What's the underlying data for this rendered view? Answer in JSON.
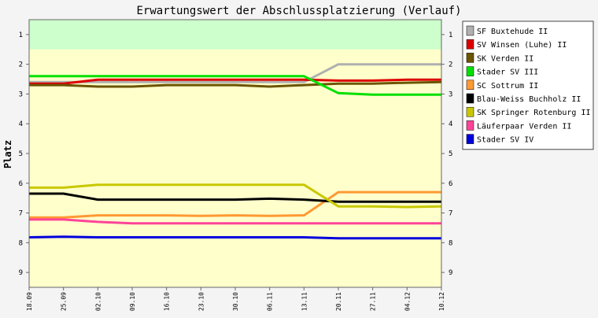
{
  "chart_data": {
    "type": "line",
    "title": "Erwartungswert der Abschlussplatzierung (Verlauf)",
    "xlabel": "",
    "ylabel": "Platz",
    "ylim": [
      0.5,
      9.5
    ],
    "y_inverted": true,
    "yticks": [
      "1",
      "2",
      "3",
      "4",
      "5",
      "6",
      "7",
      "8",
      "9"
    ],
    "categories": [
      "18.09",
      "25.09",
      "02.10",
      "09.10",
      "16.10",
      "23.10",
      "30.10",
      "06.11",
      "13.11",
      "20.11",
      "27.11",
      "04.12",
      "10.12"
    ],
    "grid": false,
    "legend_position": "right",
    "bands": [
      {
        "from": 0.5,
        "to": 1.5,
        "color": "#ccffcc"
      },
      {
        "from": 1.5,
        "to": 9.5,
        "color": "#ffffcc"
      }
    ],
    "series": [
      {
        "name": "SF Buxtehude II",
        "color": "#b0b0b0",
        "values": [
          2.6,
          2.6,
          2.6,
          2.6,
          2.6,
          2.6,
          2.6,
          2.6,
          2.6,
          2.0,
          2.0,
          2.0,
          2.0
        ]
      },
      {
        "name": "SV Winsen (Luhe) II",
        "color": "#dd0000",
        "values": [
          2.65,
          2.65,
          2.52,
          2.52,
          2.52,
          2.52,
          2.52,
          2.52,
          2.52,
          2.55,
          2.55,
          2.52,
          2.52
        ]
      },
      {
        "name": "SK Verden II",
        "color": "#6b5500",
        "values": [
          2.7,
          2.7,
          2.75,
          2.75,
          2.7,
          2.7,
          2.7,
          2.75,
          2.7,
          2.65,
          2.65,
          2.62,
          2.6
        ]
      },
      {
        "name": "Stader SV III",
        "color": "#00e000",
        "values": [
          2.4,
          2.4,
          2.4,
          2.4,
          2.4,
          2.4,
          2.4,
          2.4,
          2.4,
          2.97,
          3.02,
          3.02,
          3.02
        ]
      },
      {
        "name": "SC Sottrum II",
        "color": "#ff9933",
        "values": [
          7.15,
          7.15,
          7.08,
          7.08,
          7.08,
          7.1,
          7.08,
          7.1,
          7.08,
          6.3,
          6.3,
          6.3,
          6.3
        ]
      },
      {
        "name": "Blau-Weiss Buchholz II",
        "color": "#000000",
        "values": [
          6.35,
          6.35,
          6.55,
          6.55,
          6.55,
          6.55,
          6.55,
          6.52,
          6.55,
          6.62,
          6.62,
          6.62,
          6.62
        ]
      },
      {
        "name": "SK Springer Rotenburg II",
        "color": "#c8c800",
        "values": [
          6.15,
          6.15,
          6.05,
          6.05,
          6.05,
          6.05,
          6.05,
          6.05,
          6.05,
          6.78,
          6.78,
          6.8,
          6.78
        ]
      },
      {
        "name": "Läuferpaar Verden II",
        "color": "#ff4499",
        "values": [
          7.22,
          7.22,
          7.3,
          7.35,
          7.35,
          7.35,
          7.35,
          7.35,
          7.35,
          7.35,
          7.35,
          7.35,
          7.35
        ]
      },
      {
        "name": "Stader SV IV",
        "color": "#0000dd",
        "values": [
          7.82,
          7.8,
          7.82,
          7.82,
          7.82,
          7.82,
          7.82,
          7.82,
          7.82,
          7.85,
          7.85,
          7.85,
          7.85
        ]
      }
    ]
  }
}
